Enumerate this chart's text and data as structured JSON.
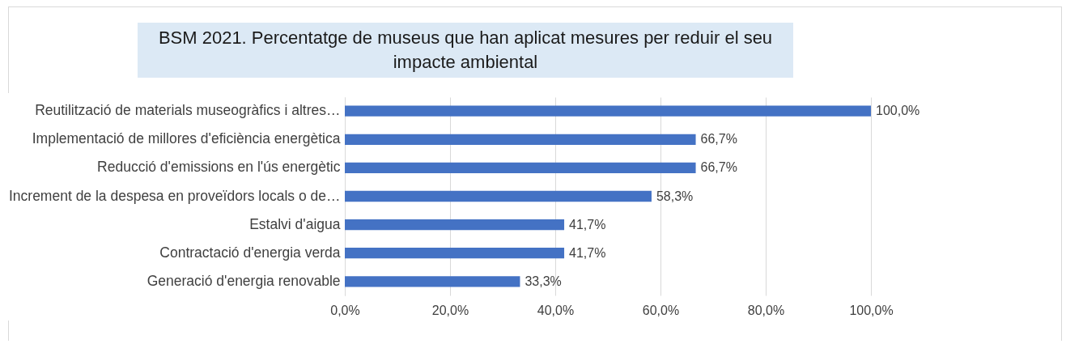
{
  "chart_data": {
    "type": "bar",
    "orientation": "horizontal",
    "title": "BSM 2021. Percentatge de museus que han aplicat mesures per reduir el seu impacte ambiental",
    "categories": [
      "Reutilització de materials museogràfics i altres…",
      "Implementació de millores d'eficiència energètica",
      "Reducció d'emissions en l'ús energètic",
      "Increment de la despesa en proveïdors locals o de…",
      "Estalvi d'aigua",
      "Contractació d'energia verda",
      "Generació d'energia renovable"
    ],
    "values": [
      100.0,
      66.7,
      66.7,
      58.3,
      41.7,
      41.7,
      33.3
    ],
    "value_labels": [
      "100,0%",
      "66,7%",
      "66,7%",
      "58,3%",
      "41,7%",
      "41,7%",
      "33,3%"
    ],
    "color": "#4472c4",
    "xlim": [
      0,
      100
    ],
    "xticks": [
      {
        "value": 0,
        "label": "0,0%"
      },
      {
        "value": 20,
        "label": "20,0%"
      },
      {
        "value": 40,
        "label": "40,0%"
      },
      {
        "value": 60,
        "label": "60,0%"
      },
      {
        "value": 80,
        "label": "80,0%"
      },
      {
        "value": 100,
        "label": "100,0%"
      }
    ],
    "grid": "x"
  }
}
